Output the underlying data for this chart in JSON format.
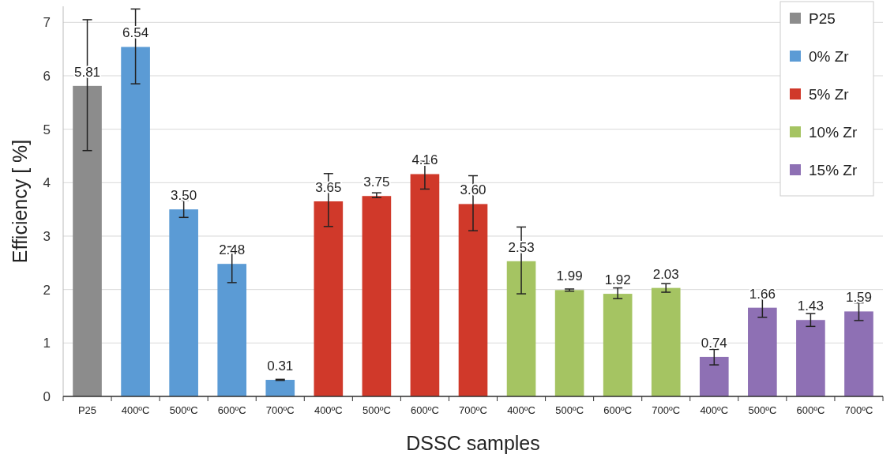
{
  "chart_data": {
    "type": "bar",
    "xlabel": "DSSC samples",
    "ylabel": "Efficiency [ %]",
    "categories": [
      "P25",
      "400ºC",
      "500ºC",
      "600ºC",
      "700ºC",
      "400ºC",
      "500ºC",
      "600ºC",
      "700ºC",
      "400ºC",
      "500ºC",
      "600ºC",
      "700ºC",
      "400ºC",
      "500ºC",
      "600ºC",
      "700ºC"
    ],
    "series": [
      {
        "name": "P25",
        "color": "#8c8c8c",
        "values": [
          5.81,
          null,
          null,
          null,
          null,
          null,
          null,
          null,
          null,
          null,
          null,
          null,
          null,
          null,
          null,
          null,
          null
        ],
        "value_labels": [
          "5.81",
          null,
          null,
          null,
          null,
          null,
          null,
          null,
          null,
          null,
          null,
          null,
          null,
          null,
          null,
          null,
          null
        ],
        "errors": [
          [
            4.6,
            7.05
          ],
          null,
          null,
          null,
          null,
          null,
          null,
          null,
          null,
          null,
          null,
          null,
          null,
          null,
          null,
          null,
          null
        ]
      },
      {
        "name": "0% Zr",
        "color": "#5b9bd5",
        "values": [
          null,
          6.54,
          3.5,
          2.48,
          0.31,
          null,
          null,
          null,
          null,
          null,
          null,
          null,
          null,
          null,
          null,
          null,
          null
        ],
        "value_labels": [
          null,
          "6.54",
          "3.50",
          "2.48",
          "0.31",
          null,
          null,
          null,
          null,
          null,
          null,
          null,
          null,
          null,
          null,
          null,
          null
        ],
        "errors": [
          null,
          [
            5.85,
            7.25
          ],
          [
            3.35,
            3.67
          ],
          [
            2.13,
            2.8
          ],
          0.01,
          null,
          null,
          null,
          null,
          null,
          null,
          null,
          null,
          null,
          null,
          null,
          null
        ]
      },
      {
        "name": "5% Zr",
        "color": "#d0392a",
        "values": [
          null,
          null,
          null,
          null,
          null,
          3.65,
          3.75,
          4.16,
          3.6,
          null,
          null,
          null,
          null,
          null,
          null,
          null,
          null
        ],
        "value_labels": [
          null,
          null,
          null,
          null,
          null,
          "3.65",
          "3.75",
          "4.16",
          "3.60",
          null,
          null,
          null,
          null,
          null,
          null,
          null,
          null
        ],
        "errors": [
          null,
          null,
          null,
          null,
          null,
          [
            3.18,
            4.17
          ],
          [
            3.72,
            3.81
          ],
          [
            3.88,
            4.4
          ],
          [
            3.1,
            4.13
          ],
          null,
          null,
          null,
          null,
          null,
          null,
          null,
          null
        ]
      },
      {
        "name": "10% Zr",
        "color": "#a5c462",
        "values": [
          null,
          null,
          null,
          null,
          null,
          null,
          null,
          null,
          null,
          2.53,
          1.99,
          1.92,
          2.03,
          null,
          null,
          null,
          null
        ],
        "value_labels": [
          null,
          null,
          null,
          null,
          null,
          null,
          null,
          null,
          null,
          "2.53",
          "1.99",
          "1.92",
          "2.03",
          null,
          null,
          null,
          null
        ],
        "errors": [
          null,
          null,
          null,
          null,
          null,
          null,
          null,
          null,
          null,
          [
            1.92,
            3.17
          ],
          0.02,
          [
            1.83,
            2.03
          ],
          [
            1.95,
            2.11
          ],
          null,
          null,
          null,
          null
        ]
      },
      {
        "name": "15% Zr",
        "color": "#8e70b4",
        "values": [
          null,
          null,
          null,
          null,
          null,
          null,
          null,
          null,
          null,
          null,
          null,
          null,
          null,
          0.74,
          1.66,
          1.43,
          1.59
        ],
        "value_labels": [
          null,
          null,
          null,
          null,
          null,
          null,
          null,
          null,
          null,
          null,
          null,
          null,
          null,
          "0.74",
          "1.66",
          "1.43",
          "1.59"
        ],
        "errors": [
          null,
          null,
          null,
          null,
          null,
          null,
          null,
          null,
          null,
          null,
          null,
          null,
          null,
          [
            0.59,
            0.88
          ],
          [
            1.48,
            1.85
          ],
          [
            1.31,
            1.55
          ],
          [
            1.42,
            1.75
          ]
        ]
      }
    ],
    "ylim": [
      0,
      7.3
    ],
    "yticks": [
      0,
      1,
      2,
      3,
      4,
      5,
      6,
      7
    ],
    "grid": "y",
    "legend": "top right"
  }
}
